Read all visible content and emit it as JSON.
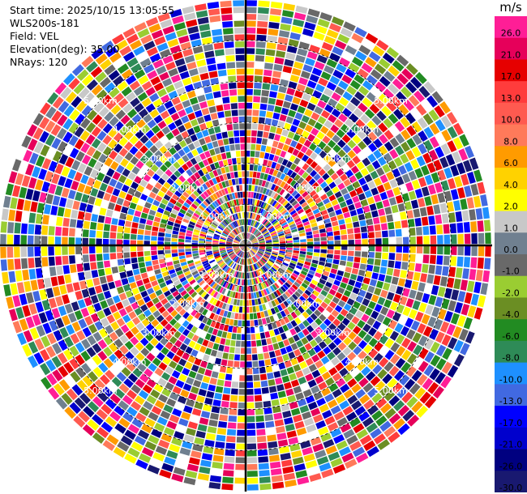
{
  "info": {
    "start_time": "Start time: 2025/10/15 13:05:55",
    "instrument": "WLS200s-181",
    "field": "Field: VEL",
    "elevation": "Elevation(deg): 35.00",
    "nrays": "NRays: 120"
  },
  "colorbar": {
    "unit": "m/s",
    "bins": [
      {
        "label": "26.0",
        "color": "#ff1e96"
      },
      {
        "label": "21.0",
        "color": "#e6005a"
      },
      {
        "label": "17.0",
        "color": "#e60000"
      },
      {
        "label": "13.0",
        "color": "#ff3c3c"
      },
      {
        "label": "10.0",
        "color": "#ff5a50"
      },
      {
        "label": "8.0",
        "color": "#ff7a5a"
      },
      {
        "label": "6.0",
        "color": "#ff9b00"
      },
      {
        "label": "4.0",
        "color": "#ffd200"
      },
      {
        "label": "2.0",
        "color": "#ffff00"
      },
      {
        "label": "1.0",
        "color": "#c8c8c8"
      },
      {
        "label": "0.0",
        "color": "#708090"
      },
      {
        "label": "-1.0",
        "color": "#696969"
      },
      {
        "label": "-2.0",
        "color": "#9acd32"
      },
      {
        "label": "-4.0",
        "color": "#6b8e23"
      },
      {
        "label": "-6.0",
        "color": "#228b22"
      },
      {
        "label": "-8.0",
        "color": "#2e8b57"
      },
      {
        "label": "-10.0",
        "color": "#1e90ff"
      },
      {
        "label": "-13.0",
        "color": "#4169e1"
      },
      {
        "label": "-17.0",
        "color": "#0000ff"
      },
      {
        "label": "-21.0",
        "color": "#0000cd"
      },
      {
        "label": "-26.0",
        "color": "#000080"
      },
      {
        "label": "-30.0",
        "color": "#191970"
      }
    ]
  },
  "range_rings": [
    "1.00km",
    "2.00km",
    "3.00km",
    "4.00km",
    "5.00km"
  ],
  "chart_data": {
    "type": "heatmap",
    "projection": "polar PPI",
    "field": "VEL",
    "units": "m/s",
    "nrays": 120,
    "elevation_deg": 35.0,
    "max_range_km": 6.0,
    "range_rings_km": [
      1,
      2,
      3,
      4,
      5
    ],
    "vmin": -30.0,
    "vmax": 26.0,
    "pattern": "noise-dominated velocities spanning the full color scale at all ranges"
  }
}
